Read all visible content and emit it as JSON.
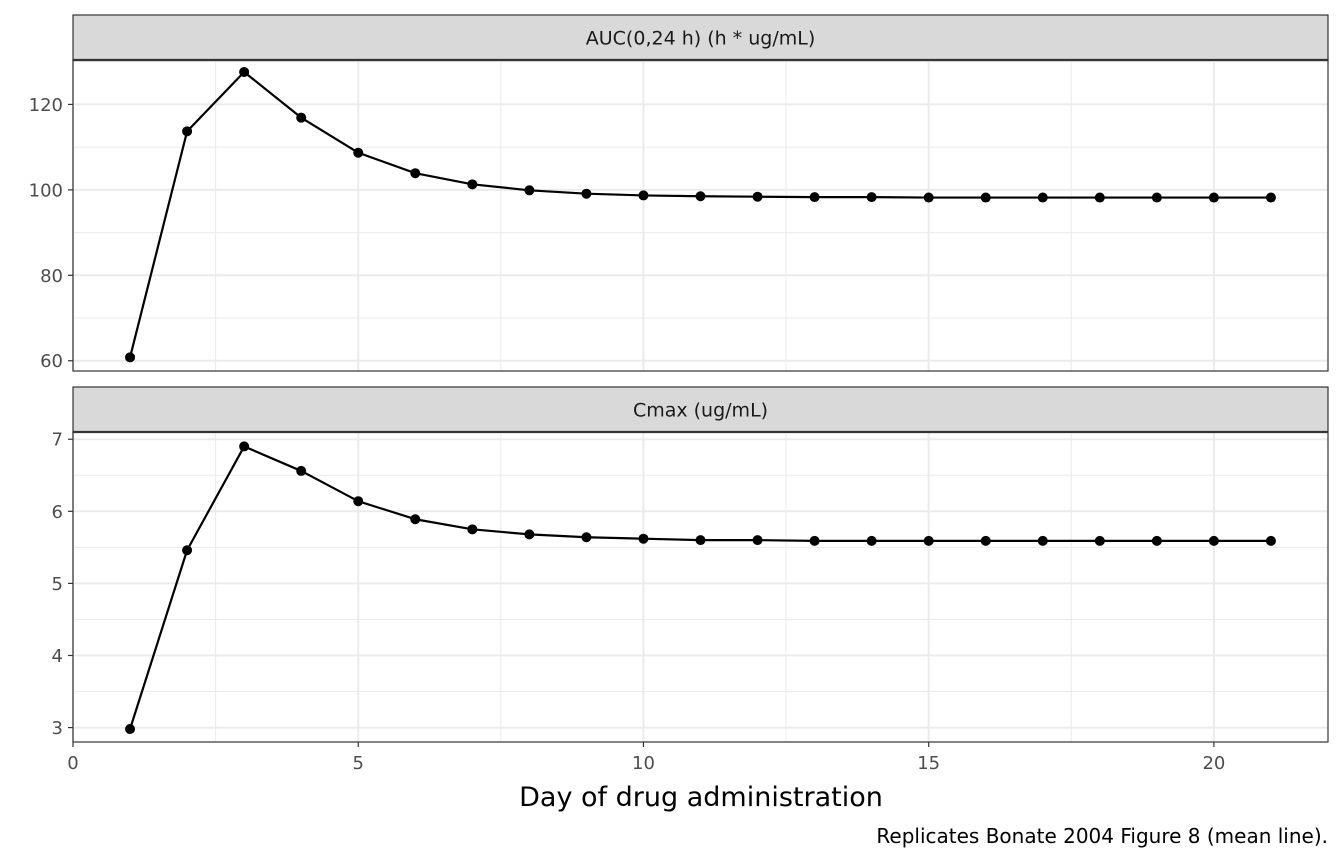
{
  "chart_data": {
    "type": "line",
    "xlabel": "Day of drug administration",
    "caption": "Replicates Bonate 2004 Figure 8 (mean line).",
    "xlim": [
      0,
      22
    ],
    "x_ticks": [
      0,
      5,
      10,
      15,
      20
    ],
    "grid": true,
    "markers": true,
    "line_color": "#000000",
    "strip_fill": "#d9d9d9",
    "panels": [
      {
        "strip": "AUC(0,24 h) (h * ug/mL)",
        "ylim": [
          57.6,
          130.4
        ],
        "y_ticks": [
          60,
          80,
          100,
          120
        ],
        "x": [
          1,
          2,
          3,
          4,
          5,
          6,
          7,
          8,
          9,
          10,
          11,
          12,
          13,
          14,
          15,
          16,
          17,
          18,
          19,
          20,
          21
        ],
        "y": [
          60.8,
          113.7,
          127.6,
          116.9,
          108.7,
          103.9,
          101.3,
          99.9,
          99.1,
          98.7,
          98.5,
          98.4,
          98.3,
          98.3,
          98.2,
          98.2,
          98.2,
          98.2,
          98.2,
          98.2,
          98.2
        ]
      },
      {
        "strip": "Cmax (ug/mL)",
        "ylim": [
          2.8,
          7.1
        ],
        "y_ticks": [
          3,
          4,
          5,
          6,
          7
        ],
        "x": [
          1,
          2,
          3,
          4,
          5,
          6,
          7,
          8,
          9,
          10,
          11,
          12,
          13,
          14,
          15,
          16,
          17,
          18,
          19,
          20,
          21
        ],
        "y": [
          2.98,
          5.46,
          6.9,
          6.56,
          6.14,
          5.89,
          5.75,
          5.68,
          5.64,
          5.62,
          5.6,
          5.6,
          5.59,
          5.59,
          5.59,
          5.59,
          5.59,
          5.59,
          5.59,
          5.59,
          5.59
        ]
      }
    ]
  }
}
